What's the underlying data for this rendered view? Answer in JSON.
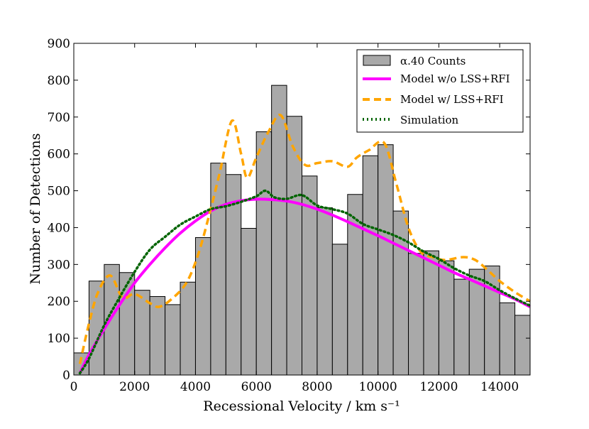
{
  "chart_data": {
    "type": "bar",
    "title": "",
    "xlabel": "Recessional Velocity / km s⁻¹",
    "ylabel": "Number of Detections",
    "xlim": [
      0,
      15000
    ],
    "ylim": [
      0,
      900
    ],
    "xticks": [
      0,
      2000,
      4000,
      6000,
      8000,
      10000,
      12000,
      14000
    ],
    "yticks": [
      0,
      100,
      200,
      300,
      400,
      500,
      600,
      700,
      800,
      900
    ],
    "bin_width": 500,
    "histogram": {
      "name": "α.40 Counts",
      "color": "#a9a9a9",
      "bin_starts": [
        0,
        500,
        1000,
        1500,
        2000,
        2500,
        3000,
        3500,
        4000,
        4500,
        5000,
        5500,
        6000,
        6500,
        7000,
        7500,
        8000,
        8500,
        9000,
        9500,
        10000,
        10500,
        11000,
        11500,
        12000,
        12500,
        13000,
        13500,
        14000,
        14500
      ],
      "values": [
        60,
        255,
        300,
        278,
        230,
        213,
        191,
        252,
        373,
        575,
        544,
        398,
        660,
        786,
        702,
        540,
        454,
        355,
        490,
        595,
        625,
        445,
        330,
        337,
        310,
        260,
        287,
        296,
        196,
        162
      ]
    },
    "series": [
      {
        "name": "Model w/o LSS+RFI",
        "color": "#ff00ff",
        "style": "solid",
        "x": [
          200,
          500,
          1000,
          1500,
          2000,
          2500,
          3000,
          3500,
          4000,
          4500,
          5000,
          5500,
          6000,
          6500,
          7000,
          7500,
          8000,
          8500,
          9000,
          9500,
          10000,
          10500,
          11000,
          11500,
          12000,
          12500,
          13000,
          13500,
          14000,
          14500,
          15000
        ],
        "y": [
          5,
          55,
          125,
          190,
          250,
          300,
          345,
          385,
          418,
          445,
          463,
          473,
          477,
          476,
          472,
          463,
          450,
          434,
          416,
          397,
          378,
          358,
          338,
          318,
          298,
          278,
          260,
          242,
          224,
          206,
          185
        ]
      },
      {
        "name": "Model w/ LSS+RFI",
        "color": "#ffa500",
        "style": "dashed",
        "x": [
          200,
          500,
          800,
          1200,
          1600,
          2000,
          2500,
          2800,
          3200,
          3700,
          4100,
          4500,
          4800,
          5200,
          5500,
          5700,
          6000,
          6400,
          6800,
          7200,
          7600,
          8000,
          8500,
          9000,
          9300,
          9700,
          10200,
          10600,
          11000,
          11400,
          11800,
          12200,
          12800,
          13200,
          13600,
          14000,
          14500,
          15000
        ],
        "y": [
          30,
          140,
          225,
          270,
          210,
          220,
          195,
          185,
          205,
          250,
          330,
          450,
          550,
          690,
          600,
          535,
          590,
          660,
          705,
          620,
          570,
          575,
          580,
          565,
          590,
          610,
          630,
          520,
          400,
          335,
          320,
          312,
          320,
          312,
          285,
          255,
          225,
          200
        ]
      },
      {
        "name": "Simulation",
        "color": "#006400",
        "style": "dotted",
        "x": [
          200,
          500,
          1000,
          1500,
          2000,
          2500,
          3000,
          3500,
          4000,
          4500,
          5000,
          5500,
          6000,
          6300,
          6600,
          7000,
          7500,
          8000,
          8500,
          9000,
          9500,
          10000,
          10500,
          11000,
          11500,
          12000,
          12500,
          13000,
          13500,
          14000,
          14500,
          15000
        ],
        "y": [
          5,
          45,
          135,
          210,
          280,
          340,
          375,
          408,
          430,
          450,
          458,
          470,
          485,
          500,
          482,
          478,
          488,
          460,
          450,
          438,
          410,
          395,
          380,
          360,
          335,
          315,
          290,
          270,
          255,
          230,
          208,
          188
        ]
      }
    ],
    "legend_position": "top-right"
  }
}
